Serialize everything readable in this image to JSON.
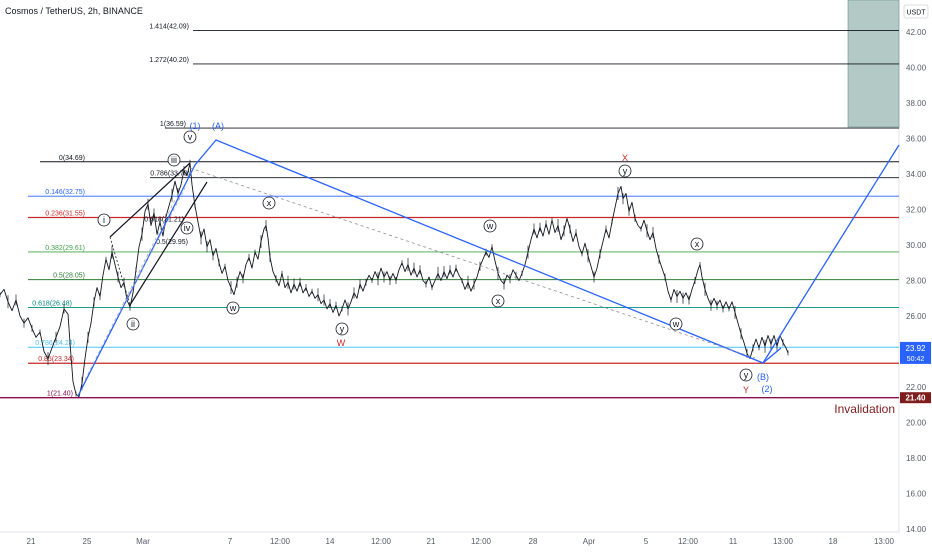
{
  "header": {
    "symbol_title": "Cosmos / TetherUS, 2h, BINANCE",
    "currency": "USDT"
  },
  "chart_data": {
    "type": "line",
    "title": "Cosmos / TetherUS, 2h, BINANCE",
    "y_axis_unit": "USDT",
    "ylim": [
      14.0,
      44.0
    ],
    "yticks": [
      "42.00",
      "40.00",
      "38.00",
      "36.00",
      "34.00",
      "32.00",
      "30.00",
      "28.00",
      "26.00",
      "24.00",
      "22.00",
      "20.00",
      "18.00",
      "16.00",
      "14.00"
    ],
    "xticks": [
      "21",
      "25",
      "Mar",
      "7",
      "12:00",
      "14",
      "12:00",
      "21",
      "12:00",
      "28",
      "Apr",
      "5",
      "12:00",
      "11",
      "13:00",
      "18",
      "13:00"
    ],
    "last_price": "23.92",
    "countdown": "50:42",
    "low_marker": "21.40",
    "fib_levels": [
      {
        "label": "1.414(42.09)",
        "value": 42.09,
        "color": "#131722"
      },
      {
        "label": "1.272(40.20)",
        "value": 40.2,
        "color": "#131722"
      },
      {
        "label": "1(36.59)",
        "value": 36.59,
        "color": "#131722"
      },
      {
        "label": "0(34.69)",
        "value": 34.69,
        "color": "#131722"
      },
      {
        "label": "0.786(33.79)",
        "value": 33.79,
        "color": "#131722"
      },
      {
        "label": "0.146(32.75)",
        "value": 32.75,
        "color": "#2962ff"
      },
      {
        "label": "0.236(31.55)",
        "value": 31.55,
        "color": "#c62828"
      },
      {
        "label": "0.618(31.21)",
        "value": 31.21,
        "color": "#131722"
      },
      {
        "label": "0.5(29.95)",
        "value": 29.95,
        "color": "#131722"
      },
      {
        "label": "0.382(29.61)",
        "value": 29.61,
        "color": "#43a047"
      },
      {
        "label": "0.5(28.05)",
        "value": 28.05,
        "color": "#2e7d32"
      },
      {
        "label": "0.618(26.48)",
        "value": 26.48,
        "color": "#00897b"
      },
      {
        "label": "0.786(24.24)",
        "value": 24.24,
        "color": "#4fc3f7"
      },
      {
        "label": "0.85(23.34)",
        "value": 23.34,
        "color": "#c62828"
      },
      {
        "label": "1(21.40)",
        "value": 21.4,
        "color": "#880e4f"
      }
    ],
    "wave_labels": [
      "(1)",
      "(A)",
      "i",
      "ii",
      "iii",
      "iv",
      "v",
      "w",
      "x",
      "y",
      "W",
      "x",
      "w",
      "x",
      "y",
      "X",
      "w",
      "x",
      "y",
      "(B)",
      "(2)",
      "Y"
    ],
    "annotation": "Invalidation",
    "price_series": [
      [
        0,
        27.2
      ],
      [
        4,
        27.5
      ],
      [
        8,
        26.8
      ],
      [
        12,
        26.3
      ],
      [
        16,
        26.9
      ],
      [
        20,
        26.0
      ],
      [
        24,
        25.6
      ],
      [
        28,
        25.9
      ],
      [
        32,
        25.3
      ],
      [
        36,
        24.8
      ],
      [
        40,
        25.1
      ],
      [
        44,
        24.0
      ],
      [
        48,
        23.6
      ],
      [
        52,
        24.2
      ],
      [
        56,
        24.8
      ],
      [
        60,
        25.4
      ],
      [
        64,
        26.4
      ],
      [
        68,
        26.1
      ],
      [
        70,
        24.5
      ],
      [
        73,
        22.3
      ],
      [
        76,
        21.6
      ],
      [
        79,
        21.45
      ],
      [
        82,
        22.2
      ],
      [
        85,
        23.6
      ],
      [
        88,
        24.8
      ],
      [
        91,
        25.6
      ],
      [
        94,
        26.8
      ],
      [
        97,
        27.6
      ],
      [
        100,
        27.1
      ],
      [
        103,
        28.3
      ],
      [
        106,
        29.2
      ],
      [
        109,
        28.6
      ],
      [
        112,
        29.6
      ],
      [
        115,
        28.9
      ],
      [
        118,
        28.2
      ],
      [
        121,
        27.6
      ],
      [
        124,
        27.9
      ],
      [
        127,
        26.9
      ],
      [
        130,
        26.5
      ],
      [
        133,
        27.3
      ],
      [
        136,
        28.6
      ],
      [
        139,
        29.9
      ],
      [
        142,
        30.6
      ],
      [
        145,
        31.9
      ],
      [
        148,
        32.3
      ],
      [
        151,
        31.1
      ],
      [
        154,
        31.8
      ],
      [
        157,
        30.6
      ],
      [
        160,
        31.3
      ],
      [
        163,
        30.5
      ],
      [
        166,
        31.6
      ],
      [
        169,
        32.2
      ],
      [
        172,
        32.8
      ],
      [
        175,
        33.6
      ],
      [
        178,
        32.9
      ],
      [
        181,
        33.4
      ],
      [
        184,
        34.2
      ],
      [
        187,
        33.9
      ],
      [
        190,
        34.6
      ],
      [
        192,
        33.4
      ],
      [
        195,
        32.2
      ],
      [
        198,
        31.3
      ],
      [
        201,
        30.4
      ],
      [
        204,
        30.9
      ],
      [
        207,
        29.9
      ],
      [
        210,
        30.3
      ],
      [
        213,
        29.4
      ],
      [
        216,
        29.8
      ],
      [
        219,
        29.0
      ],
      [
        222,
        28.4
      ],
      [
        225,
        28.8
      ],
      [
        228,
        28.0
      ],
      [
        231,
        27.6
      ],
      [
        234,
        27.2
      ],
      [
        237,
        27.9
      ],
      [
        240,
        28.5
      ],
      [
        243,
        28.1
      ],
      [
        246,
        28.9
      ],
      [
        249,
        29.3
      ],
      [
        252,
        28.7
      ],
      [
        255,
        29.6
      ],
      [
        258,
        29.2
      ],
      [
        261,
        30.2
      ],
      [
        264,
        30.9
      ],
      [
        266,
        31.1
      ],
      [
        268,
        30.4
      ],
      [
        270,
        29.3
      ],
      [
        273,
        28.5
      ],
      [
        276,
        28.1
      ],
      [
        279,
        27.7
      ],
      [
        282,
        28.4
      ],
      [
        285,
        27.6
      ],
      [
        288,
        27.9
      ],
      [
        291,
        27.3
      ],
      [
        294,
        27.8
      ],
      [
        297,
        27.4
      ],
      [
        300,
        27.9
      ],
      [
        303,
        27.3
      ],
      [
        306,
        27.6
      ],
      [
        309,
        27.1
      ],
      [
        312,
        27.4
      ],
      [
        315,
        27.0
      ],
      [
        318,
        27.2
      ],
      [
        321,
        26.7
      ],
      [
        324,
        26.9
      ],
      [
        327,
        26.4
      ],
      [
        330,
        26.7
      ],
      [
        333,
        26.2
      ],
      [
        336,
        26.6
      ],
      [
        339,
        26.0
      ],
      [
        342,
        26.4
      ],
      [
        345,
        26.9
      ],
      [
        348,
        26.4
      ],
      [
        351,
        26.8
      ],
      [
        354,
        27.3
      ],
      [
        357,
        27.0
      ],
      [
        360,
        27.8
      ],
      [
        363,
        27.4
      ],
      [
        366,
        27.9
      ],
      [
        369,
        28.3
      ],
      [
        372,
        28.0
      ],
      [
        375,
        28.5
      ],
      [
        378,
        28.1
      ],
      [
        381,
        28.7
      ],
      [
        384,
        28.2
      ],
      [
        387,
        28.5
      ],
      [
        390,
        28.0
      ],
      [
        393,
        28.4
      ],
      [
        396,
        28.0
      ],
      [
        399,
        28.6
      ],
      [
        402,
        29.0
      ],
      [
        405,
        28.5
      ],
      [
        408,
        28.9
      ],
      [
        411,
        28.3
      ],
      [
        414,
        28.7
      ],
      [
        417,
        28.2
      ],
      [
        420,
        28.6
      ],
      [
        423,
        28.0
      ],
      [
        426,
        27.8
      ],
      [
        429,
        28.2
      ],
      [
        432,
        27.6
      ],
      [
        435,
        28.0
      ],
      [
        438,
        28.4
      ],
      [
        441,
        28.0
      ],
      [
        444,
        28.5
      ],
      [
        447,
        28.1
      ],
      [
        450,
        28.6
      ],
      [
        453,
        28.2
      ],
      [
        456,
        28.7
      ],
      [
        459,
        28.3
      ],
      [
        462,
        28.0
      ],
      [
        465,
        27.5
      ],
      [
        468,
        27.9
      ],
      [
        471,
        27.4
      ],
      [
        474,
        27.8
      ],
      [
        477,
        28.2
      ],
      [
        480,
        28.8
      ],
      [
        483,
        29.2
      ],
      [
        486,
        29.6
      ],
      [
        489,
        29.3
      ],
      [
        492,
        29.9
      ],
      [
        495,
        29.1
      ],
      [
        498,
        28.4
      ],
      [
        501,
        28.0
      ],
      [
        504,
        27.8
      ],
      [
        507,
        28.3
      ],
      [
        510,
        28.1
      ],
      [
        513,
        28.6
      ],
      [
        516,
        28.3
      ],
      [
        519,
        28.0
      ],
      [
        522,
        28.4
      ],
      [
        525,
        28.9
      ],
      [
        528,
        29.6
      ],
      [
        531,
        30.3
      ],
      [
        534,
        30.9
      ],
      [
        537,
        30.4
      ],
      [
        540,
        31.0
      ],
      [
        543,
        30.5
      ],
      [
        546,
        31.2
      ],
      [
        549,
        30.6
      ],
      [
        552,
        31.4
      ],
      [
        555,
        30.7
      ],
      [
        558,
        31.1
      ],
      [
        561,
        30.3
      ],
      [
        564,
        30.8
      ],
      [
        567,
        31.5
      ],
      [
        570,
        30.9
      ],
      [
        573,
        30.2
      ],
      [
        576,
        30.7
      ],
      [
        579,
        29.9
      ],
      [
        582,
        29.5
      ],
      [
        585,
        30.1
      ],
      [
        588,
        29.4
      ],
      [
        591,
        28.8
      ],
      [
        594,
        28.2
      ],
      [
        597,
        28.7
      ],
      [
        600,
        29.5
      ],
      [
        603,
        30.2
      ],
      [
        606,
        30.9
      ],
      [
        609,
        30.4
      ],
      [
        612,
        31.3
      ],
      [
        615,
        32.1
      ],
      [
        618,
        32.9
      ],
      [
        621,
        33.3
      ],
      [
        623,
        32.6
      ],
      [
        626,
        32.9
      ],
      [
        629,
        31.9
      ],
      [
        632,
        32.4
      ],
      [
        635,
        31.5
      ],
      [
        638,
        31.1
      ],
      [
        641,
        30.9
      ],
      [
        644,
        31.4
      ],
      [
        647,
        30.8
      ],
      [
        650,
        30.3
      ],
      [
        653,
        30.7
      ],
      [
        656,
        29.8
      ],
      [
        659,
        29.2
      ],
      [
        662,
        28.7
      ],
      [
        665,
        28.2
      ],
      [
        668,
        27.4
      ],
      [
        671,
        26.9
      ],
      [
        674,
        27.5
      ],
      [
        677,
        27.1
      ],
      [
        680,
        27.4
      ],
      [
        683,
        27.0
      ],
      [
        686,
        27.3
      ],
      [
        689,
        26.9
      ],
      [
        692,
        27.5
      ],
      [
        695,
        28.0
      ],
      [
        698,
        28.6
      ],
      [
        700,
        28.9
      ],
      [
        702,
        28.2
      ],
      [
        705,
        27.5
      ],
      [
        708,
        27.0
      ],
      [
        711,
        26.6
      ],
      [
        714,
        27.0
      ],
      [
        717,
        26.6
      ],
      [
        720,
        26.9
      ],
      [
        723,
        26.4
      ],
      [
        726,
        26.8
      ],
      [
        729,
        26.4
      ],
      [
        732,
        26.8
      ],
      [
        735,
        26.2
      ],
      [
        738,
        25.6
      ],
      [
        741,
        25.0
      ],
      [
        744,
        24.5
      ],
      [
        747,
        23.9
      ],
      [
        750,
        23.6
      ],
      [
        753,
        24.2
      ],
      [
        756,
        24.7
      ],
      [
        759,
        24.2
      ],
      [
        762,
        24.8
      ],
      [
        765,
        24.3
      ],
      [
        768,
        24.9
      ],
      [
        771,
        24.4
      ],
      [
        774,
        24.9
      ],
      [
        777,
        24.3
      ],
      [
        780,
        24.9
      ],
      [
        783,
        24.5
      ],
      [
        786,
        24.2
      ],
      [
        788,
        23.92
      ]
    ]
  }
}
